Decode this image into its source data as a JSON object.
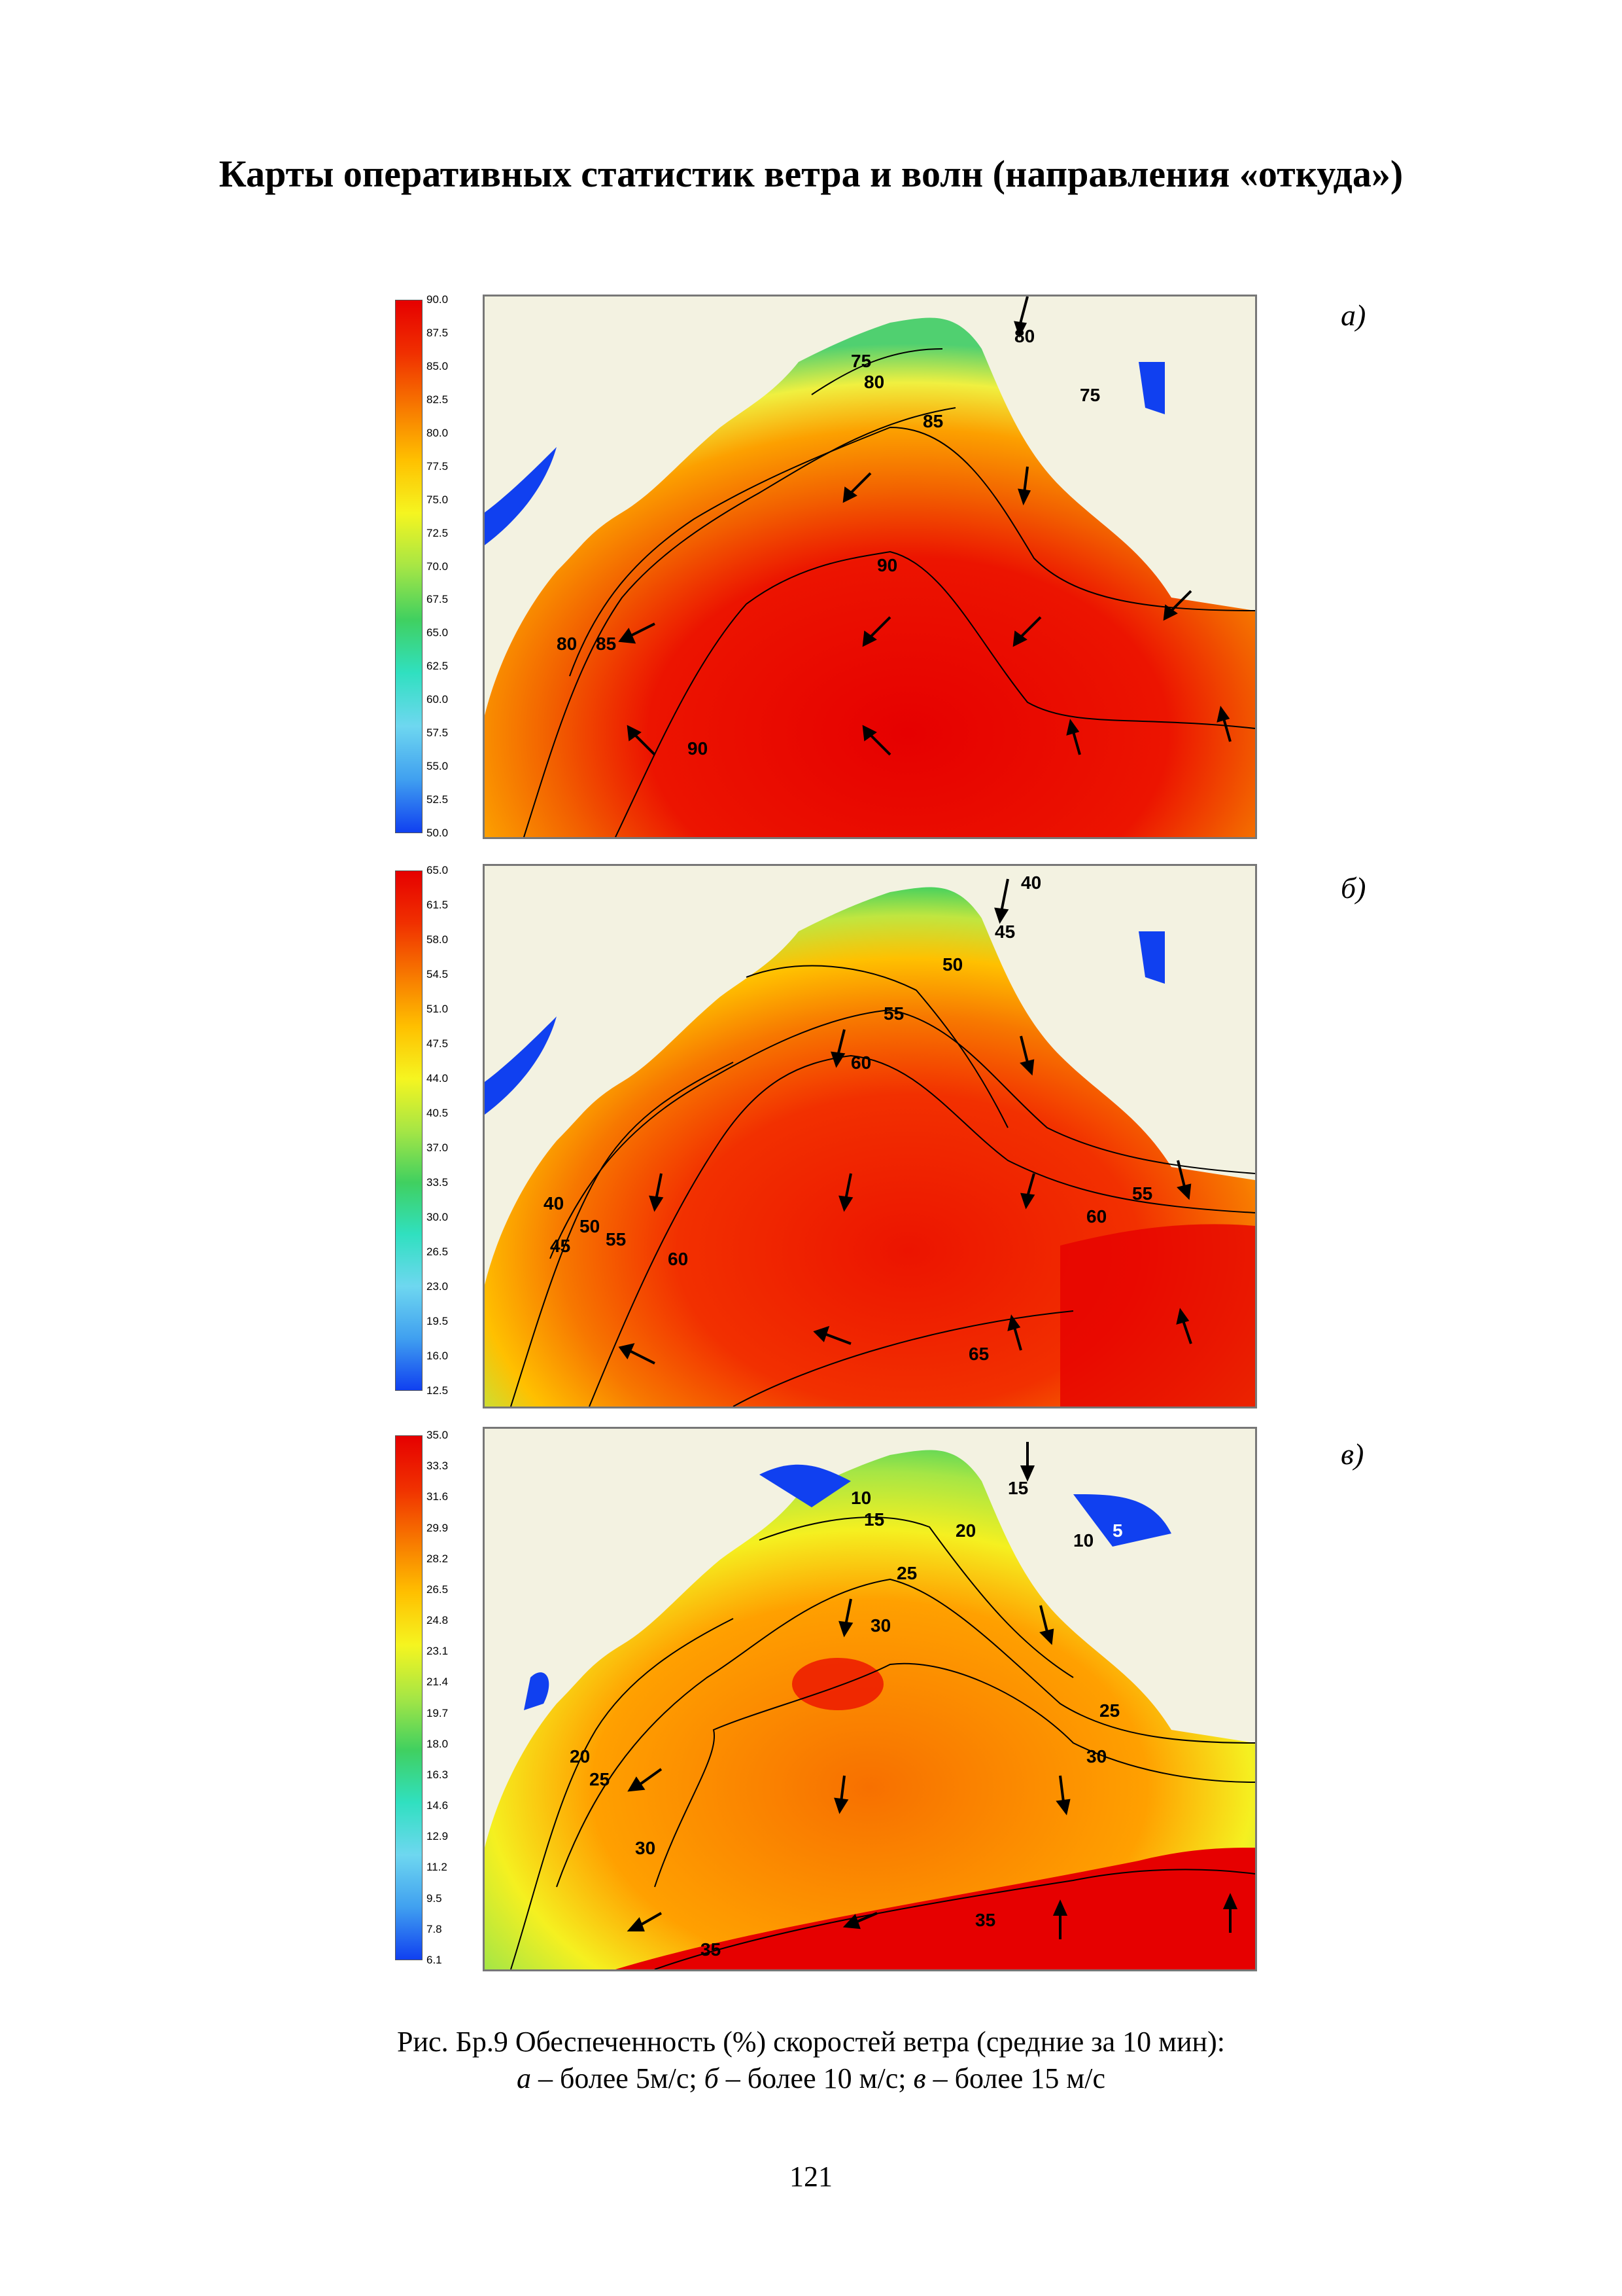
{
  "page_title": "Карты оперативных статистик ветра и волн (направления «откуда»)",
  "panels": [
    {
      "letter": "а)",
      "scale_ticks": [
        "90.0",
        "87.5",
        "85.0",
        "82.5",
        "80.0",
        "77.5",
        "75.0",
        "72.5",
        "70.0",
        "67.5",
        "65.0",
        "62.5",
        "60.0",
        "57.5",
        "55.0",
        "52.5",
        "50.0"
      ],
      "contour_labels": [
        "75",
        "80",
        "80",
        "75",
        "85",
        "90",
        "80",
        "85",
        "90"
      ]
    },
    {
      "letter": "б)",
      "scale_ticks": [
        "65.0",
        "61.5",
        "58.0",
        "54.5",
        "51.0",
        "47.5",
        "44.0",
        "40.5",
        "37.0",
        "33.5",
        "30.0",
        "26.5",
        "23.0",
        "19.5",
        "16.0",
        "12.5"
      ],
      "contour_labels": [
        "40",
        "45",
        "50",
        "55",
        "60",
        "40",
        "50",
        "45",
        "55",
        "60",
        "55",
        "60",
        "65"
      ]
    },
    {
      "letter": "в)",
      "scale_ticks": [
        "35.0",
        "33.3",
        "31.6",
        "29.9",
        "28.2",
        "26.5",
        "24.8",
        "23.1",
        "21.4",
        "19.7",
        "18.0",
        "16.3",
        "14.6",
        "12.9",
        "11.2",
        "9.5",
        "7.8",
        "6.1"
      ],
      "contour_labels": [
        "10",
        "15",
        "15",
        "20",
        "10",
        "5",
        "25",
        "30",
        "25",
        "30",
        "20",
        "25",
        "30",
        "35",
        "35"
      ]
    }
  ],
  "caption": {
    "line1": "Рис. Бр.9 Обеспеченность (%) скоростей ветра (средние за 10 мин):",
    "a_letter": "а",
    "a_text": " – более 5м/с; ",
    "b_letter": "б",
    "b_text": " – более 10 м/с; ",
    "v_letter": "в",
    "v_text": " – более 15 м/с"
  },
  "page_number": "121",
  "colors": {
    "land": "#f3f2e1",
    "colormap": [
      "#e60000",
      "#f03000",
      "#f77800",
      "#ffc000",
      "#f5f520",
      "#a6e645",
      "#40d060",
      "#30e0c0",
      "#6ed7f0",
      "#40a0f0",
      "#1040f0"
    ]
  }
}
